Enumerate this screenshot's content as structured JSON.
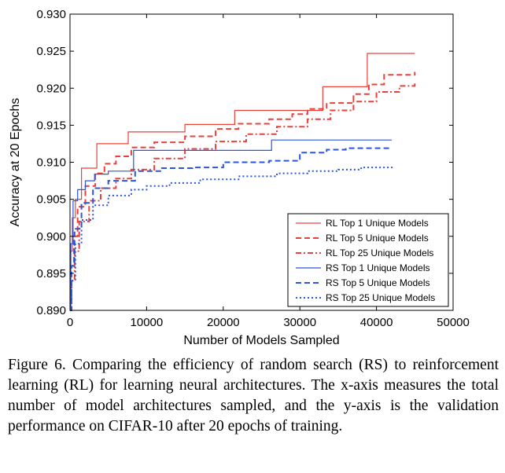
{
  "chart_data": {
    "type": "line",
    "title": "",
    "xlabel": "Number of Models Sampled",
    "ylabel": "Accuracy at 20 Epochs",
    "xlim": [
      0,
      50000
    ],
    "ylim": [
      0.89,
      0.93
    ],
    "xticks": [
      0,
      10000,
      20000,
      30000,
      40000,
      50000
    ],
    "xtick_labels": [
      "0",
      "10000",
      "20000",
      "30000",
      "40000",
      "50000"
    ],
    "yticks": [
      0.89,
      0.895,
      0.9,
      0.905,
      0.91,
      0.915,
      0.92,
      0.925,
      0.93
    ],
    "ytick_labels": [
      "0.890",
      "0.895",
      "0.900",
      "0.905",
      "0.910",
      "0.915",
      "0.920",
      "0.925",
      "0.930"
    ],
    "grid": false,
    "legend_position": "lower-right",
    "series": [
      {
        "name": "RL Top 1 Unique Models",
        "color": "#e8413c",
        "style": "solid",
        "x": [
          0,
          100,
          300,
          700,
          1500,
          3200,
          3500,
          7600,
          15000,
          21500,
          33000,
          38800,
          45000
        ],
        "y": [
          0.8905,
          0.898,
          0.9025,
          0.905,
          0.9092,
          0.9092,
          0.9125,
          0.9141,
          0.9151,
          0.917,
          0.9202,
          0.9247,
          0.9247
        ]
      },
      {
        "name": "RL Top 5 Unique Models",
        "color": "#e8413c",
        "style": "dashed",
        "x": [
          0,
          150,
          500,
          1000,
          2000,
          3300,
          4500,
          6000,
          8000,
          11000,
          15000,
          19000,
          22000,
          26000,
          29000,
          31000,
          33500,
          37000,
          39000,
          41000,
          45000
        ],
        "y": [
          0.89,
          0.896,
          0.9,
          0.904,
          0.9068,
          0.9085,
          0.9098,
          0.9108,
          0.912,
          0.9127,
          0.9135,
          0.9145,
          0.9152,
          0.9158,
          0.9165,
          0.9172,
          0.918,
          0.9192,
          0.9205,
          0.9218,
          0.9222
        ]
      },
      {
        "name": "RL Top 25 Unique Models",
        "color": "#e8413c",
        "style": "dashdot",
        "x": [
          0,
          200,
          600,
          1200,
          2500,
          4000,
          6000,
          8000,
          11000,
          15000,
          19000,
          23000,
          27000,
          31000,
          34000,
          37000,
          40000,
          43000,
          45000
        ],
        "y": [
          0.89,
          0.894,
          0.898,
          0.902,
          0.9048,
          0.9065,
          0.9078,
          0.909,
          0.9105,
          0.9118,
          0.9128,
          0.9138,
          0.9148,
          0.9158,
          0.917,
          0.9182,
          0.9195,
          0.9203,
          0.9208
        ]
      },
      {
        "name": "RS Top 1 Unique Models",
        "color": "#2b55d9",
        "style": "solid",
        "x": [
          0,
          100,
          400,
          1000,
          2000,
          3200,
          5000,
          8300,
          12000,
          20000,
          26300,
          33000,
          42000
        ],
        "y": [
          0.8905,
          0.899,
          0.9048,
          0.9063,
          0.9075,
          0.9084,
          0.9088,
          0.9116,
          0.9116,
          0.9116,
          0.913,
          0.913,
          0.913
        ]
      },
      {
        "name": "RS Top 5 Unique Models",
        "color": "#2b55d9",
        "style": "dashed",
        "x": [
          0,
          200,
          600,
          1500,
          3000,
          5000,
          8500,
          12000,
          16000,
          20000,
          26000,
          30000,
          33500,
          36000,
          42000
        ],
        "y": [
          0.89,
          0.896,
          0.901,
          0.9045,
          0.9065,
          0.9075,
          0.9088,
          0.9092,
          0.9093,
          0.91,
          0.9102,
          0.9113,
          0.9117,
          0.9119,
          0.9119
        ]
      },
      {
        "name": "RS Top 25 Unique Models",
        "color": "#2b55d9",
        "style": "dotted",
        "x": [
          0,
          200,
          700,
          1500,
          3000,
          5000,
          8000,
          10000,
          13000,
          17000,
          22000,
          27000,
          31000,
          35000,
          38000,
          42000
        ],
        "y": [
          0.89,
          0.894,
          0.899,
          0.9022,
          0.9042,
          0.9055,
          0.9063,
          0.9068,
          0.9072,
          0.9077,
          0.9081,
          0.9085,
          0.9088,
          0.909,
          0.9093,
          0.9094
        ]
      }
    ]
  },
  "caption": "Figure 6. Comparing the efficiency of random search (RS) to reinforcement learning (RL) for learning neural architectures. The x-axis measures the total number of model architectures sampled, and the y-axis is the validation performance on CIFAR-10 after 20 epochs of training."
}
